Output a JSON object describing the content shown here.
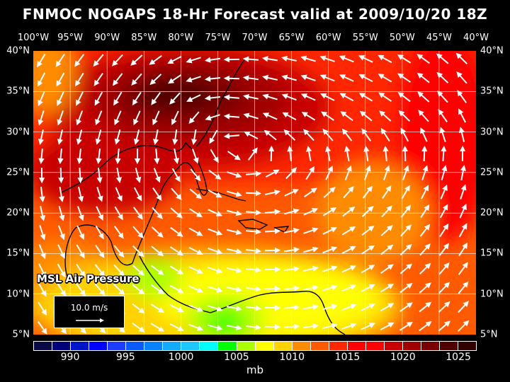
{
  "title": "FNMOC NOGAPS 18-Hr Forecast valid at 2009/10/20 18Z",
  "lon_labels": [
    "100°W",
    "95°W",
    "90°W",
    "85°W",
    "80°W",
    "75°W",
    "70°W",
    "65°W",
    "60°W",
    "55°W",
    "50°W",
    "45°W",
    "40°W"
  ],
  "lat_labels": [
    "40°N",
    "35°N",
    "30°N",
    "25°N",
    "20°N",
    "15°N",
    "10°N",
    "5°N"
  ],
  "field_label": "MSL Air Pressure",
  "vector_legend": "10.0 m/s",
  "colorbar": {
    "unit": "mb",
    "labels": [
      "990",
      "995",
      "1000",
      "1005",
      "1010",
      "1015",
      "1020",
      "1025"
    ],
    "colors": [
      "#0a0a46",
      "#00007a",
      "#0014c8",
      "#0000ff",
      "#1e3cff",
      "#0a5aff",
      "#0a82ff",
      "#14aaff",
      "#1ec8ff",
      "#00ffff",
      "#00ff00",
      "#aaff00",
      "#ffff00",
      "#ffd200",
      "#ff8c00",
      "#ff5a00",
      "#ff2800",
      "#ff0000",
      "#ff0000",
      "#c80000",
      "#a00000",
      "#780000",
      "#500000",
      "#320000"
    ]
  }
}
